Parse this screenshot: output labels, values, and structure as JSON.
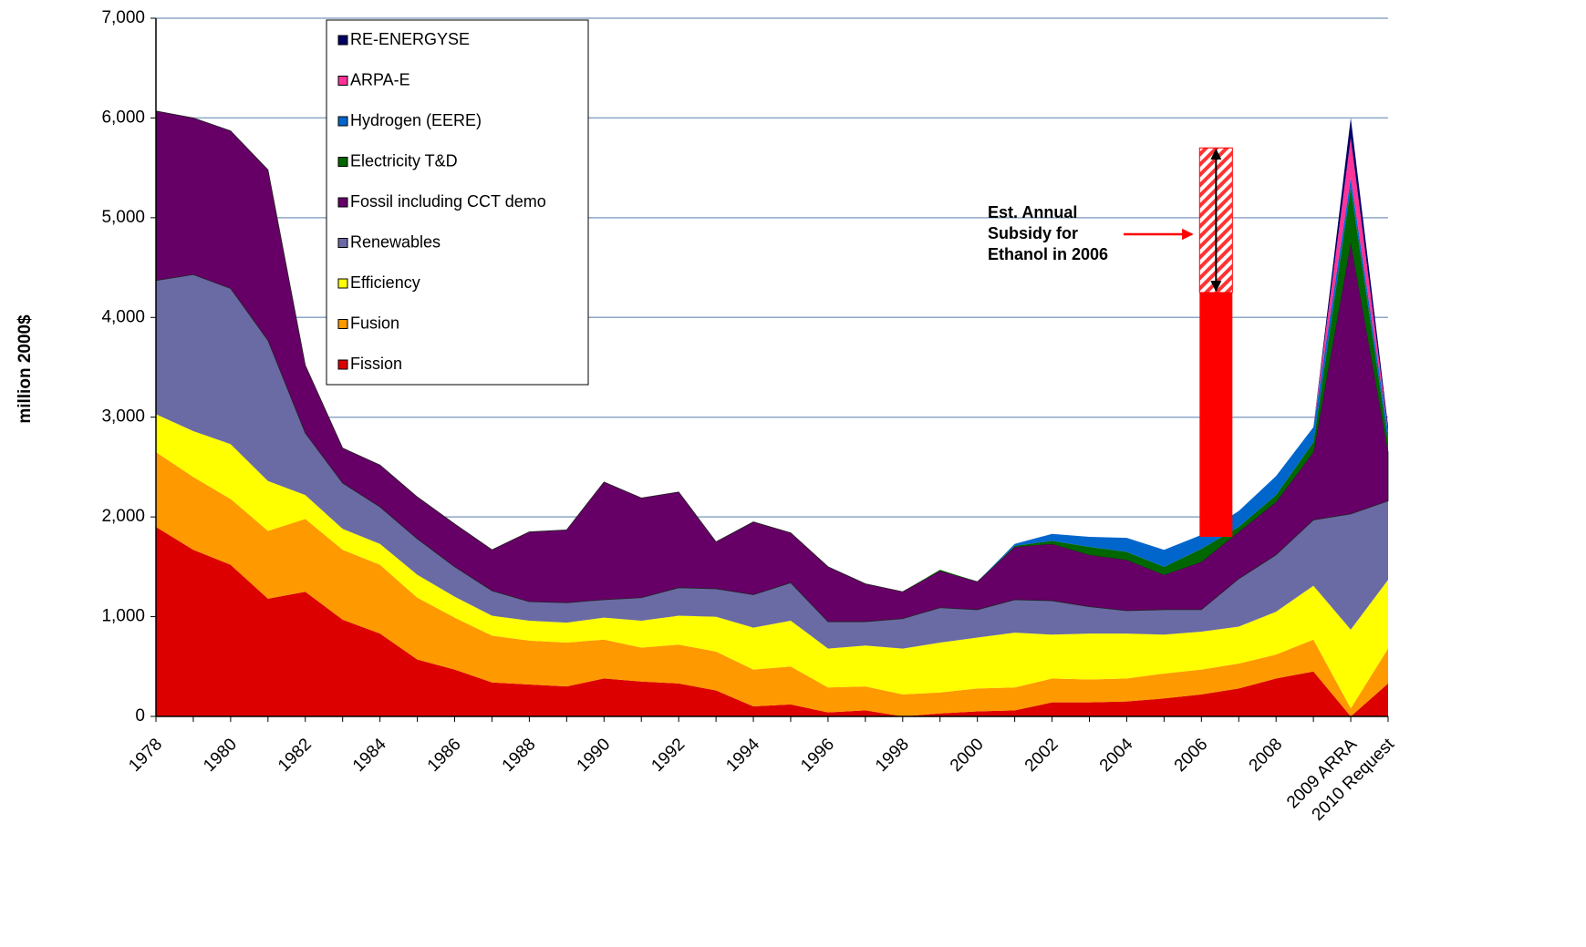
{
  "chart_data": {
    "type": "stacked_area",
    "y_label": "million 2000$",
    "categories": [
      "1978",
      null,
      "1980",
      null,
      "1982",
      null,
      "1984",
      null,
      "1986",
      null,
      "1988",
      null,
      "1990",
      null,
      "1992",
      null,
      "1994",
      null,
      "1996",
      null,
      "1998",
      null,
      "2000",
      null,
      "2002",
      null,
      "2004",
      null,
      "2006",
      null,
      "2008",
      null,
      "2009 ARRA",
      "2010 Request"
    ],
    "ylim": [
      0,
      7000
    ],
    "yticks": [
      0,
      {
        "value": 1000,
        "label": "1,000"
      },
      {
        "value": 2000,
        "label": "2,000"
      },
      {
        "value": 3000,
        "label": "3,000"
      },
      {
        "value": 4000,
        "label": "4,000"
      },
      {
        "value": 5000,
        "label": "5,000"
      },
      {
        "value": 6000,
        "label": "6,000"
      },
      {
        "value": 7000,
        "label": "7,000"
      }
    ],
    "grid": true,
    "legend": "top-left",
    "series": [
      {
        "name": "Fission",
        "color": "#dd0000",
        "values": [
          1900,
          1670,
          1520,
          1180,
          1250,
          970,
          830,
          570,
          470,
          340,
          320,
          300,
          380,
          350,
          330,
          260,
          100,
          120,
          40,
          60,
          0,
          30,
          50,
          60,
          140,
          140,
          150,
          180,
          220,
          280,
          380,
          450,
          0,
          330
        ]
      },
      {
        "name": "Fusion",
        "color": "#ff9900",
        "values": [
          750,
          730,
          660,
          680,
          730,
          700,
          690,
          620,
          520,
          470,
          440,
          440,
          390,
          340,
          390,
          390,
          370,
          380,
          250,
          240,
          220,
          210,
          230,
          230,
          240,
          230,
          230,
          250,
          250,
          250,
          240,
          320,
          80,
          350
        ]
      },
      {
        "name": "Efficiency",
        "color": "#ffff00",
        "values": [
          380,
          460,
          550,
          500,
          240,
          210,
          210,
          230,
          210,
          200,
          200,
          200,
          220,
          270,
          290,
          350,
          420,
          460,
          390,
          410,
          460,
          500,
          510,
          550,
          440,
          460,
          450,
          390,
          380,
          370,
          430,
          540,
          790,
          690
        ]
      },
      {
        "name": "Renewables",
        "color": "#6a6aa4",
        "values": [
          1340,
          1570,
          1560,
          1410,
          620,
          460,
          370,
          360,
          300,
          250,
          190,
          200,
          180,
          230,
          280,
          280,
          330,
          380,
          270,
          240,
          300,
          350,
          280,
          330,
          340,
          270,
          230,
          250,
          220,
          480,
          570,
          660,
          1160,
          790
        ]
      },
      {
        "name": "Fossil including CCT demo",
        "color": "#660066",
        "values": [
          1700,
          1570,
          1580,
          1710,
          680,
          350,
          420,
          420,
          430,
          410,
          700,
          730,
          1180,
          1000,
          960,
          470,
          730,
          500,
          550,
          380,
          270,
          370,
          280,
          530,
          570,
          520,
          510,
          350,
          480,
          470,
          530,
          680,
          2720,
          490
        ]
      },
      {
        "name": "Electricity T&D",
        "color": "#006600",
        "values": [
          0,
          0,
          0,
          0,
          0,
          0,
          0,
          0,
          0,
          0,
          0,
          0,
          0,
          0,
          0,
          0,
          0,
          0,
          0,
          0,
          0,
          10,
          0,
          10,
          30,
          80,
          80,
          80,
          130,
          50,
          70,
          100,
          550,
          100
        ]
      },
      {
        "name": "Hydrogen (EERE)",
        "color": "#0066cc",
        "values": [
          0,
          0,
          0,
          0,
          0,
          0,
          0,
          0,
          0,
          0,
          0,
          0,
          0,
          0,
          0,
          0,
          0,
          0,
          0,
          0,
          0,
          0,
          0,
          20,
          70,
          100,
          140,
          170,
          140,
          160,
          190,
          150,
          100,
          100
        ]
      },
      {
        "name": "ARPA-E",
        "color": "#ff3399",
        "values": [
          0,
          0,
          0,
          0,
          0,
          0,
          0,
          0,
          0,
          0,
          0,
          0,
          0,
          0,
          0,
          0,
          0,
          0,
          0,
          0,
          0,
          0,
          0,
          0,
          0,
          0,
          0,
          0,
          0,
          0,
          0,
          0,
          400,
          10
        ]
      },
      {
        "name": "RE-ENERGYSE",
        "color": "#000066",
        "values": [
          0,
          0,
          0,
          0,
          0,
          0,
          0,
          0,
          0,
          0,
          0,
          0,
          0,
          0,
          0,
          0,
          0,
          0,
          0,
          0,
          0,
          0,
          0,
          0,
          0,
          0,
          0,
          0,
          0,
          0,
          0,
          0,
          200,
          50
        ]
      }
    ],
    "ethanol_bar": {
      "category": "2006",
      "base": 1800,
      "solid_top": 4250,
      "top": 5700,
      "color": "#ff0000",
      "annotation": [
        "Est. Annual",
        "Subsidy for",
        "Ethanol in 2006"
      ]
    }
  }
}
